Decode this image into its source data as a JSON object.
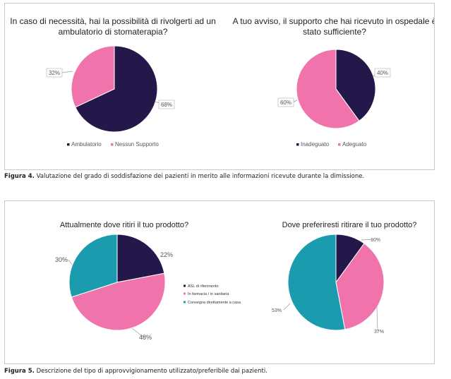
{
  "colors": {
    "navy": "#24184a",
    "pink": "#f173ac",
    "teal": "#1a9bae",
    "label_border": "#bbbbbb"
  },
  "figure4": {
    "caption_label": "Figura 4.",
    "caption_text": "Valutazione del grado di soddisfazione dei pazienti in merito alle informazioni ricevute durante la dimissione."
  },
  "figure5": {
    "caption_label": "Figura 5.",
    "caption_text": "Descrizione del tipo di approvvigionamento utilizzato/preferibile dai pazienti."
  },
  "chart_data": [
    {
      "type": "pie",
      "title_lines": [
        "In caso di necessità, hai la possibilità di rivolgerti ad un",
        "ambulatorio di stomaterapia?"
      ],
      "categories": [
        "Ambulatorio",
        "Nessun Supporto"
      ],
      "values": [
        68,
        32
      ],
      "labels": [
        "68%",
        "32%"
      ],
      "colors": [
        "#24184a",
        "#f173ac"
      ],
      "legend": "bottom"
    },
    {
      "type": "pie",
      "title_lines": [
        "A tuo avviso, il supporto che hai ricevuto in ospedale è",
        "stato sufficiente?"
      ],
      "categories": [
        "Inadeguato",
        "Adeguato"
      ],
      "values": [
        40,
        60
      ],
      "labels": [
        "40%",
        "60%"
      ],
      "colors": [
        "#24184a",
        "#f173ac"
      ],
      "legend": "bottom"
    },
    {
      "type": "pie",
      "title_lines": [
        "Attualmente dove ritiri il tuo prodotto?"
      ],
      "categories": [
        "ASL di riferimento",
        "In farmacia / in sanitaria",
        "Consegna direttamente a casa"
      ],
      "values": [
        22,
        48,
        30
      ],
      "labels": [
        "22%",
        "48%",
        "30%"
      ],
      "colors": [
        "#24184a",
        "#f173ac",
        "#1a9bae"
      ],
      "legend": "right"
    },
    {
      "type": "pie",
      "title_lines": [
        "Dove preferiresti ritirare il tuo prodotto?"
      ],
      "values": [
        10,
        37,
        53
      ],
      "labels": [
        "10%",
        "37%",
        "53%"
      ],
      "colors": [
        "#24184a",
        "#f173ac",
        "#1a9bae"
      ]
    }
  ]
}
